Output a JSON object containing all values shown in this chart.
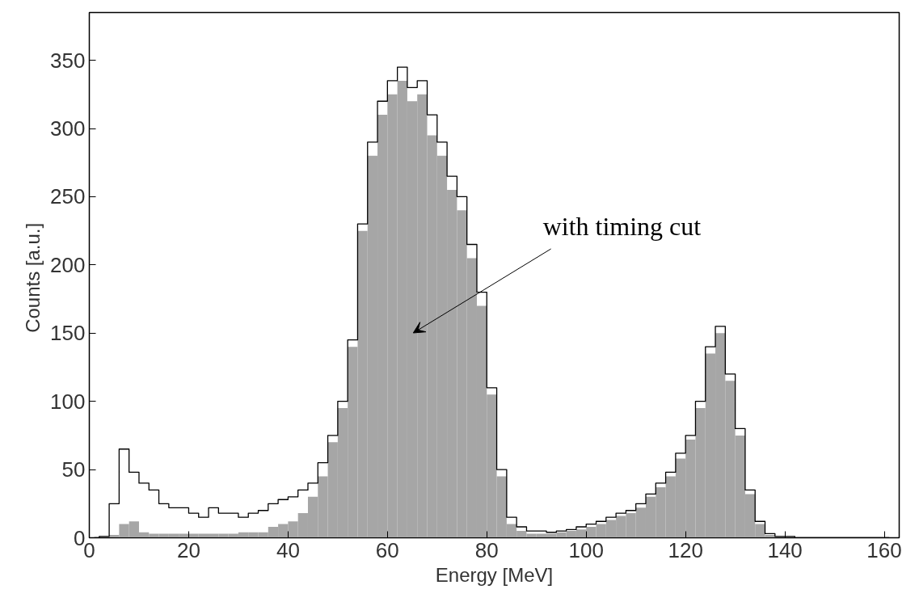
{
  "chart_data": {
    "type": "histogram",
    "xlabel": "Energy [MeV]",
    "ylabel": "Counts  [a.u.]",
    "bins": [
      0,
      2,
      4,
      6,
      8,
      10,
      12,
      14,
      16,
      18,
      20,
      22,
      24,
      26,
      28,
      30,
      32,
      34,
      36,
      38,
      40,
      42,
      44,
      46,
      48,
      50,
      52,
      54,
      56,
      58,
      60,
      62,
      64,
      66,
      68,
      70,
      72,
      74,
      76,
      78,
      80,
      82,
      84,
      86,
      88,
      90,
      92,
      94,
      96,
      98,
      100,
      102,
      104,
      106,
      108,
      110,
      112,
      114,
      116,
      118,
      120,
      122,
      124,
      126,
      128,
      130,
      132,
      134,
      136,
      138,
      140,
      142,
      144,
      146,
      148,
      150,
      152,
      154,
      156,
      158,
      160,
      162
    ],
    "series": [
      {
        "color": "#a6a6a6",
        "values": [
          0,
          0,
          2,
          10,
          12,
          4,
          3,
          3,
          3,
          3,
          3,
          3,
          3,
          3,
          3,
          4,
          4,
          4,
          8,
          10,
          12,
          18,
          30,
          45,
          70,
          95,
          140,
          225,
          280,
          310,
          325,
          335,
          320,
          325,
          295,
          280,
          255,
          240,
          205,
          170,
          105,
          45,
          10,
          5,
          3,
          3,
          3,
          4,
          5,
          6,
          8,
          10,
          13,
          16,
          18,
          22,
          30,
          37,
          45,
          58,
          72,
          95,
          135,
          150,
          115,
          75,
          32,
          10,
          2,
          0,
          0,
          0,
          0,
          0,
          0,
          0,
          0,
          0,
          0,
          0,
          0
        ]
      },
      {
        "type": "step",
        "color": "#000000",
        "x": [
          1,
          3,
          5,
          7,
          9,
          11,
          13,
          15,
          17,
          19,
          21,
          23,
          25,
          27,
          29,
          31,
          33,
          35,
          37,
          39,
          41,
          43,
          45,
          47,
          49,
          51,
          53,
          55,
          57,
          59,
          61,
          63,
          65,
          67,
          69,
          71,
          73,
          75,
          77,
          79,
          81,
          83,
          85,
          87,
          89,
          91,
          93,
          95,
          97,
          99,
          101,
          103,
          105,
          107,
          109,
          111,
          113,
          115,
          117,
          119,
          121,
          123,
          125,
          127,
          129,
          131,
          133,
          135,
          137,
          139,
          141,
          143,
          145,
          147,
          149,
          151,
          153,
          155,
          157,
          159,
          161
        ],
        "values": [
          0,
          1,
          25,
          65,
          48,
          40,
          35,
          25,
          22,
          22,
          18,
          15,
          22,
          18,
          18,
          15,
          18,
          20,
          25,
          28,
          30,
          35,
          40,
          55,
          75,
          100,
          145,
          230,
          290,
          320,
          335,
          345,
          330,
          335,
          310,
          290,
          265,
          250,
          215,
          180,
          110,
          50,
          15,
          8,
          5,
          5,
          4,
          5,
          6,
          8,
          10,
          12,
          15,
          18,
          20,
          25,
          32,
          40,
          48,
          62,
          75,
          100,
          140,
          155,
          120,
          80,
          35,
          12,
          3,
          1,
          1,
          0,
          0,
          0,
          0,
          0,
          0,
          0,
          0,
          0,
          0
        ]
      }
    ],
    "annotations": [
      "with timing cut"
    ],
    "xlim": [
      0,
      163
    ],
    "ylim": [
      0,
      385
    ],
    "xticks": [
      0,
      20,
      40,
      60,
      80,
      100,
      120,
      140,
      160
    ],
    "yticks": [
      0,
      50,
      100,
      150,
      200,
      250,
      300,
      350
    ],
    "grid": false
  }
}
